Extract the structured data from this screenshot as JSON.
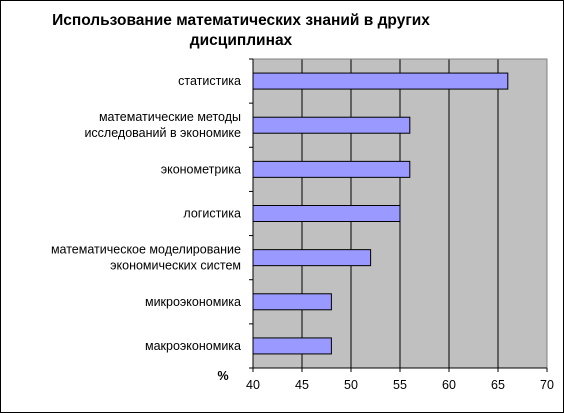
{
  "chart_data": {
    "type": "bar",
    "orientation": "horizontal",
    "title": "Использование математических знаний в других дисциплинах",
    "categories": [
      "статистика",
      "математические методы исследований в экономике",
      "эконометрика",
      "логистика",
      "математическое моделирование экономических систем",
      "микроэкономика",
      "макроэкономика"
    ],
    "category_lines": [
      [
        "статистика"
      ],
      [
        "математические методы",
        "исследований в экономике"
      ],
      [
        "эконометрика"
      ],
      [
        "логистика"
      ],
      [
        "математическое моделирование",
        "экономических систем"
      ],
      [
        "микроэкономика"
      ],
      [
        "макроэкономика"
      ]
    ],
    "values": [
      66,
      56,
      56,
      55,
      52,
      48,
      48
    ],
    "xlabel": "%",
    "xlim": [
      40,
      70
    ],
    "xticks": [
      40,
      45,
      50,
      55,
      60,
      65,
      70
    ],
    "grid": true,
    "legend": "none",
    "colors": {
      "bar_fill": "#9999ff",
      "bar_stroke": "#000000",
      "plot_background": "#c0c0c0",
      "gridline": "#000000"
    }
  }
}
